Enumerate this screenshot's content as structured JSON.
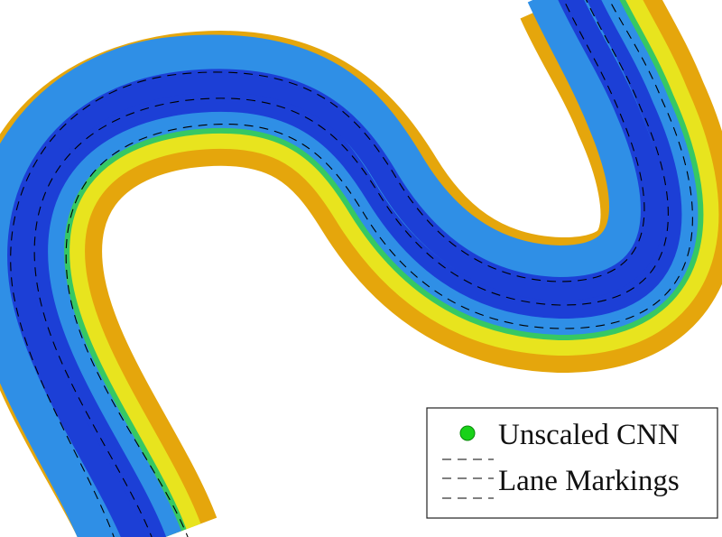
{
  "chart_data": {
    "type": "scatter",
    "title": "",
    "xlabel": "",
    "ylabel": "",
    "grid": false,
    "legend": {
      "placement": "bottom-right",
      "entries": [
        {
          "label": "Unscaled CNN",
          "marker": "circle",
          "color": "#19d219"
        },
        {
          "label": "Lane Markings",
          "marker": "dashed-line",
          "color": "#000000"
        }
      ]
    },
    "colors": {
      "low": "#1c3fd6",
      "mid_low": "#2f8fe6",
      "mid": "#22c46a",
      "mid_high": "#e8e41e",
      "high": "#e5a60c"
    }
  },
  "legend": {
    "cnn_label": "Unscaled CNN",
    "lane_label": "Lane Markings"
  }
}
